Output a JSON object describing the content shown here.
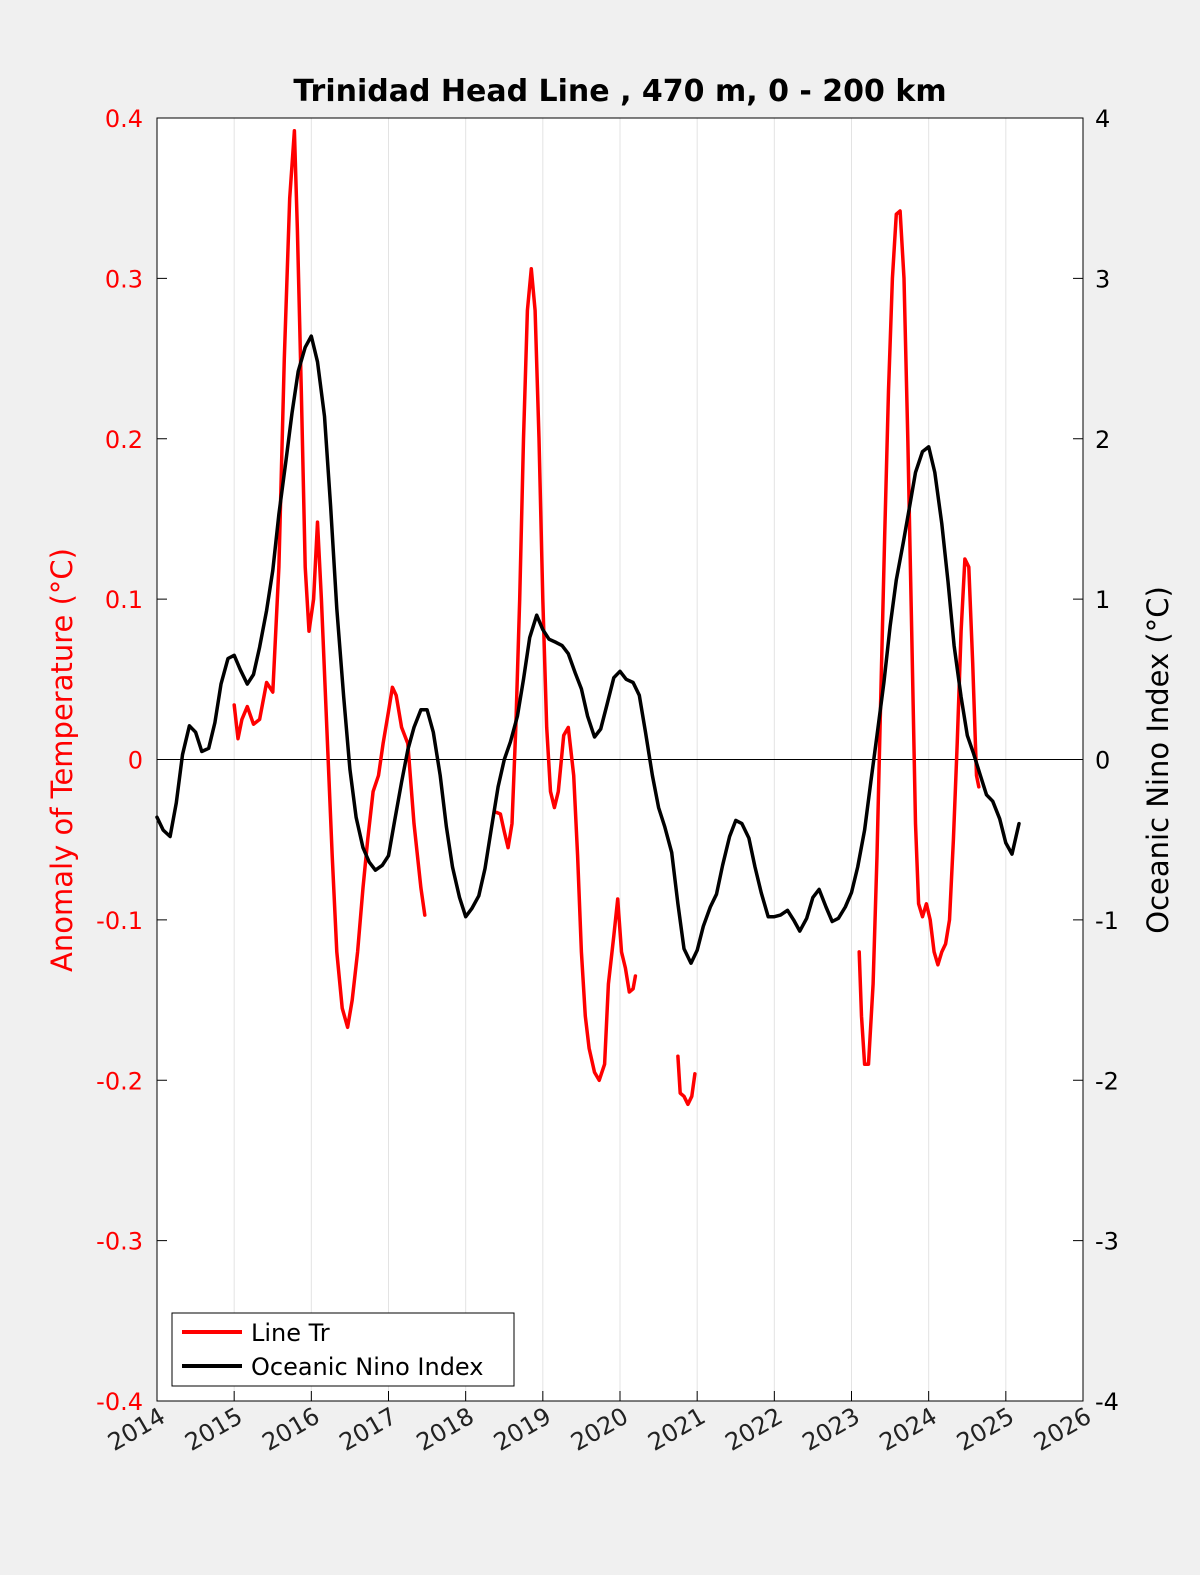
{
  "chart_data": {
    "type": "line",
    "title": "Trinidad Head Line , 470 m, 0 - 200 km",
    "ylabel_left": "Anomaly of Temperature (°C)",
    "ylabel_right": "Oceanic Nino Index (°C)",
    "xlim": [
      2014,
      2026
    ],
    "ylim_left": [
      -0.4,
      0.4
    ],
    "ylim_right": [
      -4,
      4
    ],
    "xticks": [
      "2014",
      "2015",
      "2016",
      "2017",
      "2018",
      "2019",
      "2020",
      "2021",
      "2022",
      "2023",
      "2024",
      "2025",
      "2026"
    ],
    "yticks_left": [
      "0.4",
      "0.3",
      "0.2",
      "0.1",
      "0",
      "-0.1",
      "-0.2",
      "-0.3",
      "-0.4"
    ],
    "yticks_right": [
      "4",
      "3",
      "2",
      "1",
      "0",
      "-1",
      "-2",
      "-3",
      "-4"
    ],
    "grid": "vertical",
    "zero_line": true,
    "legend_position": "bottom-left",
    "series": [
      {
        "name": "Line Tr",
        "color": "#ff0000",
        "axis": "left",
        "segments": [
          [
            [
              2015.0,
              0.034
            ],
            [
              2015.05,
              0.013
            ],
            [
              2015.1,
              0.025
            ],
            [
              2015.17,
              0.033
            ],
            [
              2015.25,
              0.022
            ],
            [
              2015.33,
              0.025
            ],
            [
              2015.42,
              0.048
            ],
            [
              2015.5,
              0.042
            ],
            [
              2015.58,
              0.12
            ],
            [
              2015.65,
              0.25
            ],
            [
              2015.72,
              0.35
            ],
            [
              2015.78,
              0.392
            ],
            [
              2015.82,
              0.33
            ],
            [
              2015.87,
              0.23
            ],
            [
              2015.92,
              0.12
            ],
            [
              2015.97,
              0.08
            ],
            [
              2016.03,
              0.1
            ],
            [
              2016.08,
              0.148
            ],
            [
              2016.13,
              0.1
            ],
            [
              2016.2,
              0.02
            ],
            [
              2016.27,
              -0.06
            ],
            [
              2016.33,
              -0.12
            ],
            [
              2016.4,
              -0.155
            ],
            [
              2016.47,
              -0.167
            ],
            [
              2016.53,
              -0.15
            ],
            [
              2016.6,
              -0.12
            ],
            [
              2016.67,
              -0.08
            ],
            [
              2016.73,
              -0.05
            ],
            [
              2016.8,
              -0.02
            ],
            [
              2016.87,
              -0.01
            ],
            [
              2016.93,
              0.01
            ],
            [
              2017.0,
              0.03
            ],
            [
              2017.05,
              0.045
            ],
            [
              2017.1,
              0.04
            ],
            [
              2017.17,
              0.02
            ],
            [
              2017.25,
              0.01
            ],
            [
              2017.33,
              -0.04
            ],
            [
              2017.42,
              -0.08
            ],
            [
              2017.47,
              -0.097
            ]
          ],
          [
            [
              2018.4,
              -0.033
            ],
            [
              2018.45,
              -0.034
            ],
            [
              2018.5,
              -0.045
            ],
            [
              2018.55,
              -0.055
            ],
            [
              2018.6,
              -0.04
            ],
            [
              2018.65,
              0.02
            ],
            [
              2018.7,
              0.1
            ],
            [
              2018.75,
              0.2
            ],
            [
              2018.8,
              0.28
            ],
            [
              2018.85,
              0.306
            ],
            [
              2018.9,
              0.28
            ],
            [
              2018.95,
              0.2
            ],
            [
              2019.0,
              0.1
            ],
            [
              2019.05,
              0.02
            ],
            [
              2019.1,
              -0.02
            ],
            [
              2019.15,
              -0.03
            ],
            [
              2019.2,
              -0.02
            ],
            [
              2019.27,
              0.015
            ],
            [
              2019.33,
              0.02
            ],
            [
              2019.4,
              -0.01
            ],
            [
              2019.45,
              -0.06
            ],
            [
              2019.5,
              -0.12
            ],
            [
              2019.55,
              -0.16
            ],
            [
              2019.6,
              -0.18
            ],
            [
              2019.67,
              -0.195
            ],
            [
              2019.73,
              -0.2
            ],
            [
              2019.8,
              -0.19
            ],
            [
              2019.85,
              -0.14
            ],
            [
              2019.92,
              -0.11
            ],
            [
              2019.97,
              -0.087
            ],
            [
              2020.02,
              -0.12
            ],
            [
              2020.07,
              -0.13
            ],
            [
              2020.12,
              -0.145
            ],
            [
              2020.17,
              -0.143
            ],
            [
              2020.2,
              -0.135
            ]
          ],
          [
            [
              2020.75,
              -0.185
            ],
            [
              2020.78,
              -0.208
            ],
            [
              2020.83,
              -0.21
            ],
            [
              2020.88,
              -0.215
            ],
            [
              2020.93,
              -0.21
            ],
            [
              2020.97,
              -0.196
            ]
          ],
          [
            [
              2023.1,
              -0.12
            ],
            [
              2023.13,
              -0.16
            ],
            [
              2023.17,
              -0.19
            ],
            [
              2023.22,
              -0.19
            ],
            [
              2023.28,
              -0.14
            ],
            [
              2023.33,
              -0.06
            ],
            [
              2023.38,
              0.04
            ],
            [
              2023.43,
              0.14
            ],
            [
              2023.48,
              0.23
            ],
            [
              2023.53,
              0.3
            ],
            [
              2023.58,
              0.34
            ],
            [
              2023.63,
              0.342
            ],
            [
              2023.68,
              0.3
            ],
            [
              2023.73,
              0.2
            ],
            [
              2023.78,
              0.08
            ],
            [
              2023.83,
              -0.04
            ],
            [
              2023.87,
              -0.09
            ],
            [
              2023.92,
              -0.098
            ],
            [
              2023.97,
              -0.09
            ],
            [
              2024.02,
              -0.1
            ],
            [
              2024.07,
              -0.12
            ],
            [
              2024.12,
              -0.128
            ],
            [
              2024.17,
              -0.12
            ],
            [
              2024.22,
              -0.115
            ],
            [
              2024.27,
              -0.1
            ],
            [
              2024.32,
              -0.05
            ],
            [
              2024.37,
              0.01
            ],
            [
              2024.42,
              0.08
            ],
            [
              2024.47,
              0.125
            ],
            [
              2024.52,
              0.12
            ],
            [
              2024.57,
              0.06
            ],
            [
              2024.62,
              -0.01
            ],
            [
              2024.65,
              -0.017
            ]
          ]
        ]
      },
      {
        "name": "Oceanic Nino Index",
        "color": "#000000",
        "axis": "right",
        "segments": [
          [
            [
              2014.0,
              -0.36
            ],
            [
              2014.08,
              -0.44
            ],
            [
              2014.17,
              -0.48
            ],
            [
              2014.25,
              -0.27
            ],
            [
              2014.33,
              0.03
            ],
            [
              2014.42,
              0.21
            ],
            [
              2014.5,
              0.17
            ],
            [
              2014.58,
              0.05
            ],
            [
              2014.67,
              0.07
            ],
            [
              2014.75,
              0.23
            ],
            [
              2014.83,
              0.47
            ],
            [
              2014.92,
              0.63
            ],
            [
              2015.0,
              0.65
            ],
            [
              2015.08,
              0.56
            ],
            [
              2015.17,
              0.47
            ],
            [
              2015.25,
              0.53
            ],
            [
              2015.33,
              0.7
            ],
            [
              2015.42,
              0.93
            ],
            [
              2015.5,
              1.18
            ],
            [
              2015.58,
              1.53
            ],
            [
              2015.67,
              1.86
            ],
            [
              2015.75,
              2.16
            ],
            [
              2015.83,
              2.42
            ],
            [
              2015.92,
              2.57
            ],
            [
              2016.0,
              2.64
            ],
            [
              2016.08,
              2.48
            ],
            [
              2016.17,
              2.14
            ],
            [
              2016.25,
              1.58
            ],
            [
              2016.33,
              0.94
            ],
            [
              2016.42,
              0.39
            ],
            [
              2016.5,
              -0.06
            ],
            [
              2016.58,
              -0.36
            ],
            [
              2016.67,
              -0.55
            ],
            [
              2016.75,
              -0.64
            ],
            [
              2016.83,
              -0.69
            ],
            [
              2016.92,
              -0.66
            ],
            [
              2017.0,
              -0.6
            ],
            [
              2017.08,
              -0.38
            ],
            [
              2017.17,
              -0.14
            ],
            [
              2017.25,
              0.06
            ],
            [
              2017.33,
              0.2
            ],
            [
              2017.42,
              0.31
            ],
            [
              2017.5,
              0.31
            ],
            [
              2017.58,
              0.17
            ],
            [
              2017.67,
              -0.1
            ],
            [
              2017.75,
              -0.42
            ],
            [
              2017.83,
              -0.67
            ],
            [
              2017.92,
              -0.86
            ],
            [
              2018.0,
              -0.98
            ],
            [
              2018.08,
              -0.93
            ],
            [
              2018.17,
              -0.85
            ],
            [
              2018.25,
              -0.68
            ],
            [
              2018.33,
              -0.44
            ],
            [
              2018.42,
              -0.17
            ],
            [
              2018.5,
              0.0
            ],
            [
              2018.58,
              0.11
            ],
            [
              2018.67,
              0.27
            ],
            [
              2018.75,
              0.5
            ],
            [
              2018.83,
              0.76
            ],
            [
              2018.92,
              0.9
            ],
            [
              2019.0,
              0.81
            ],
            [
              2019.08,
              0.75
            ],
            [
              2019.17,
              0.73
            ],
            [
              2019.25,
              0.71
            ],
            [
              2019.33,
              0.66
            ],
            [
              2019.42,
              0.54
            ],
            [
              2019.5,
              0.44
            ],
            [
              2019.58,
              0.27
            ],
            [
              2019.67,
              0.14
            ],
            [
              2019.75,
              0.19
            ],
            [
              2019.83,
              0.34
            ],
            [
              2019.92,
              0.51
            ],
            [
              2020.0,
              0.55
            ],
            [
              2020.08,
              0.5
            ],
            [
              2020.17,
              0.48
            ],
            [
              2020.25,
              0.4
            ],
            [
              2020.33,
              0.17
            ],
            [
              2020.42,
              -0.1
            ],
            [
              2020.5,
              -0.3
            ],
            [
              2020.58,
              -0.42
            ],
            [
              2020.67,
              -0.58
            ],
            [
              2020.75,
              -0.9
            ],
            [
              2020.83,
              -1.18
            ],
            [
              2020.92,
              -1.27
            ],
            [
              2021.0,
              -1.19
            ],
            [
              2021.08,
              -1.04
            ],
            [
              2021.17,
              -0.92
            ],
            [
              2021.25,
              -0.84
            ],
            [
              2021.33,
              -0.66
            ],
            [
              2021.42,
              -0.48
            ],
            [
              2021.5,
              -0.38
            ],
            [
              2021.58,
              -0.4
            ],
            [
              2021.67,
              -0.49
            ],
            [
              2021.75,
              -0.67
            ],
            [
              2021.83,
              -0.83
            ],
            [
              2021.92,
              -0.98
            ],
            [
              2022.0,
              -0.98
            ],
            [
              2022.08,
              -0.97
            ],
            [
              2022.17,
              -0.94
            ],
            [
              2022.25,
              -1.0
            ],
            [
              2022.33,
              -1.07
            ],
            [
              2022.42,
              -0.99
            ],
            [
              2022.5,
              -0.86
            ],
            [
              2022.58,
              -0.81
            ],
            [
              2022.67,
              -0.92
            ],
            [
              2022.75,
              -1.01
            ],
            [
              2022.83,
              -0.99
            ],
            [
              2022.92,
              -0.92
            ],
            [
              2023.0,
              -0.83
            ],
            [
              2023.08,
              -0.67
            ],
            [
              2023.17,
              -0.44
            ],
            [
              2023.25,
              -0.14
            ],
            [
              2023.33,
              0.15
            ],
            [
              2023.42,
              0.48
            ],
            [
              2023.5,
              0.83
            ],
            [
              2023.58,
              1.12
            ],
            [
              2023.67,
              1.35
            ],
            [
              2023.75,
              1.57
            ],
            [
              2023.83,
              1.79
            ],
            [
              2023.92,
              1.92
            ],
            [
              2024.0,
              1.95
            ],
            [
              2024.08,
              1.79
            ],
            [
              2024.17,
              1.47
            ],
            [
              2024.25,
              1.11
            ],
            [
              2024.33,
              0.71
            ],
            [
              2024.42,
              0.39
            ],
            [
              2024.5,
              0.15
            ],
            [
              2024.58,
              0.04
            ],
            [
              2024.67,
              -0.1
            ],
            [
              2024.75,
              -0.22
            ],
            [
              2024.83,
              -0.26
            ],
            [
              2024.92,
              -0.37
            ],
            [
              2025.0,
              -0.52
            ],
            [
              2025.08,
              -0.59
            ],
            [
              2025.17,
              -0.4
            ]
          ]
        ]
      }
    ]
  }
}
